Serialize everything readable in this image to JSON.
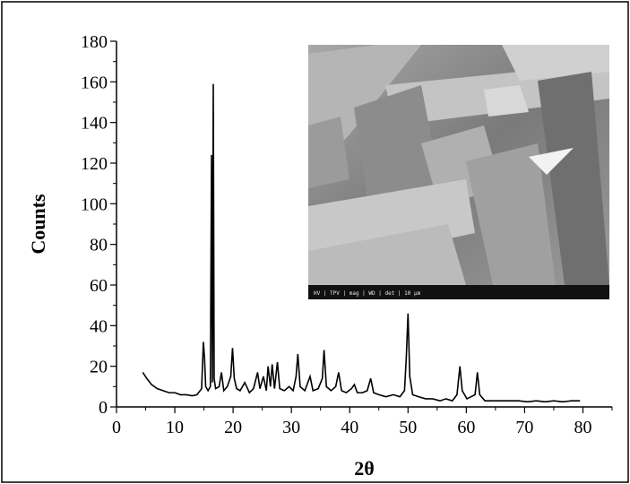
{
  "chart_data": {
    "type": "line",
    "title": "",
    "xlabel": "2θ",
    "ylabel": "Counts",
    "xlim": [
      0,
      85
    ],
    "ylim": [
      0,
      180
    ],
    "x_ticks": [
      "0",
      "10",
      "20",
      "30",
      "40",
      "50",
      "60",
      "70",
      "80"
    ],
    "y_ticks": [
      "0",
      "20",
      "40",
      "60",
      "80",
      "100",
      "120",
      "140",
      "160",
      "180"
    ],
    "grid": false,
    "legend": "none",
    "series": [
      {
        "color": "#000000",
        "points": [
          [
            4.5,
            17
          ],
          [
            5.2,
            14
          ],
          [
            6,
            11
          ],
          [
            7,
            9
          ],
          [
            8,
            8
          ],
          [
            9,
            7
          ],
          [
            10,
            7
          ],
          [
            11,
            6
          ],
          [
            12,
            6
          ],
          [
            13,
            5.5
          ],
          [
            13.8,
            6
          ],
          [
            14.6,
            9
          ],
          [
            14.9,
            32
          ],
          [
            15.1,
            24
          ],
          [
            15.3,
            10
          ],
          [
            15.7,
            8
          ],
          [
            16.1,
            10
          ],
          [
            16.3,
            124
          ],
          [
            16.45,
            12
          ],
          [
            16.6,
            159
          ],
          [
            16.75,
            14
          ],
          [
            17,
            9
          ],
          [
            17.6,
            10
          ],
          [
            18,
            17
          ],
          [
            18.4,
            8
          ],
          [
            19,
            10
          ],
          [
            19.6,
            15
          ],
          [
            19.9,
            29
          ],
          [
            20.2,
            14
          ],
          [
            20.6,
            9
          ],
          [
            21.2,
            8
          ],
          [
            22,
            12
          ],
          [
            22.8,
            7
          ],
          [
            23.5,
            9
          ],
          [
            24.2,
            17
          ],
          [
            24.6,
            9
          ],
          [
            25.2,
            15
          ],
          [
            25.7,
            8
          ],
          [
            26,
            20
          ],
          [
            26.4,
            10
          ],
          [
            26.7,
            21
          ],
          [
            27.1,
            9
          ],
          [
            27.6,
            22
          ],
          [
            28,
            9
          ],
          [
            28.8,
            8
          ],
          [
            29.6,
            10
          ],
          [
            30.3,
            8
          ],
          [
            30.8,
            15
          ],
          [
            31.1,
            26
          ],
          [
            31.5,
            10
          ],
          [
            32.3,
            8
          ],
          [
            33.2,
            15
          ],
          [
            33.7,
            8
          ],
          [
            34.6,
            9
          ],
          [
            35.3,
            14
          ],
          [
            35.6,
            28
          ],
          [
            36,
            10
          ],
          [
            36.8,
            8
          ],
          [
            37.6,
            10
          ],
          [
            38.1,
            17
          ],
          [
            38.6,
            8
          ],
          [
            39.4,
            7
          ],
          [
            40.3,
            9
          ],
          [
            40.8,
            11
          ],
          [
            41.3,
            7
          ],
          [
            42.2,
            7
          ],
          [
            43,
            8
          ],
          [
            43.6,
            14
          ],
          [
            44.1,
            7
          ],
          [
            45,
            6
          ],
          [
            46.2,
            5
          ],
          [
            47.5,
            6
          ],
          [
            48.6,
            5
          ],
          [
            49.4,
            8
          ],
          [
            49.7,
            24
          ],
          [
            50,
            46
          ],
          [
            50.3,
            15
          ],
          [
            50.8,
            6
          ],
          [
            51.8,
            5
          ],
          [
            53,
            4
          ],
          [
            54.2,
            4
          ],
          [
            55.5,
            3
          ],
          [
            56.5,
            4
          ],
          [
            57.6,
            3
          ],
          [
            58.4,
            6
          ],
          [
            58.9,
            20
          ],
          [
            59.3,
            8
          ],
          [
            60.1,
            4
          ],
          [
            60.8,
            5
          ],
          [
            61.5,
            6
          ],
          [
            61.9,
            17
          ],
          [
            62.3,
            6
          ],
          [
            63.2,
            3
          ],
          [
            64.5,
            3
          ],
          [
            66,
            3
          ],
          [
            67.5,
            3
          ],
          [
            69,
            3
          ],
          [
            70.5,
            2.5
          ],
          [
            72,
            3
          ],
          [
            73.5,
            2.5
          ],
          [
            75,
            3
          ],
          [
            76.5,
            2.5
          ],
          [
            78,
            3
          ],
          [
            79.5,
            3
          ]
        ]
      }
    ],
    "inset_image": {
      "type": "SEM micrograph",
      "info_bar": "HV  |  TPV  |  mag  |  WD  |  det  |  10 μm"
    }
  }
}
